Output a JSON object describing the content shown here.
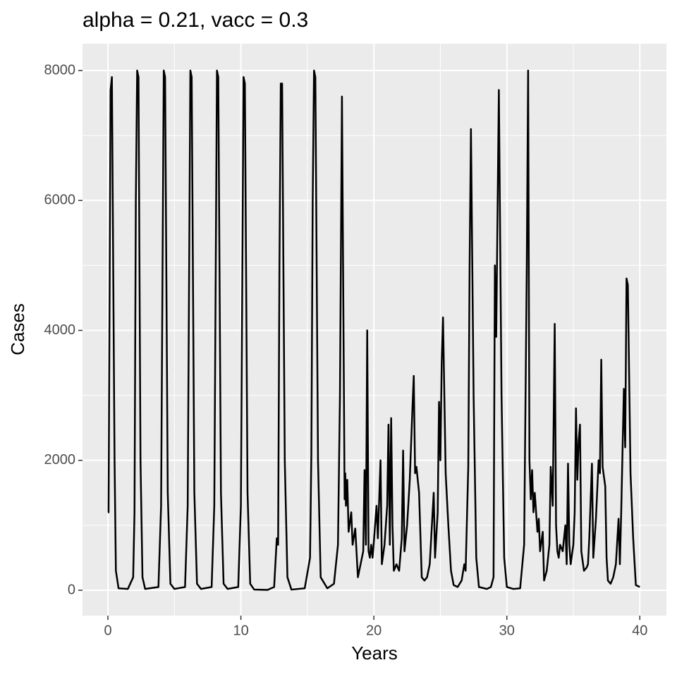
{
  "chart_data": {
    "type": "line",
    "title": "alpha = 0.21, vacc = 0.3",
    "x_label": "Years",
    "y_label": "Cases",
    "color": "#000000",
    "grid": true,
    "xlim": [
      -1.91,
      42.0
    ],
    "ylim": [
      -391,
      8413
    ],
    "xticks": [
      0,
      10,
      20,
      30,
      40
    ],
    "yticks": [
      0,
      2000,
      4000,
      6000,
      8000
    ],
    "x": [
      0,
      0.05,
      0.2,
      0.3,
      0.5,
      0.6,
      0.8,
      1.5,
      1.9,
      2.0,
      2.1,
      2.2,
      2.3,
      2.45,
      2.6,
      2.8,
      3.8,
      4.0,
      4.2,
      4.3,
      4.5,
      4.7,
      5.0,
      5.8,
      6.0,
      6.2,
      6.3,
      6.5,
      6.7,
      7.0,
      7.8,
      8.0,
      8.2,
      8.3,
      8.5,
      8.7,
      9.0,
      9.8,
      10.0,
      10.2,
      10.3,
      10.5,
      10.7,
      11.0,
      12.0,
      12.5,
      12.7,
      12.8,
      12.9,
      13.0,
      13.1,
      13.3,
      13.5,
      13.8,
      14.8,
      15.2,
      15.3,
      15.4,
      15.5,
      15.6,
      15.8,
      16.0,
      16.5,
      17.0,
      17.3,
      17.45,
      17.6,
      17.75,
      17.8,
      17.85,
      17.9,
      18.0,
      18.1,
      18.3,
      18.4,
      18.6,
      18.8,
      19.0,
      19.2,
      19.3,
      19.4,
      19.5,
      19.6,
      19.7,
      19.8,
      19.9,
      20.0,
      20.2,
      20.3,
      20.5,
      20.6,
      20.8,
      21.0,
      21.1,
      21.2,
      21.3,
      21.4,
      21.5,
      21.7,
      21.9,
      22.1,
      22.2,
      22.3,
      22.5,
      22.7,
      22.9,
      23.0,
      23.1,
      23.2,
      23.4,
      23.6,
      23.8,
      24.0,
      24.2,
      24.5,
      24.6,
      24.8,
      24.9,
      25.0,
      25.1,
      25.2,
      25.4,
      25.6,
      25.8,
      26.0,
      26.3,
      26.6,
      26.8,
      26.9,
      27.1,
      27.2,
      27.3,
      27.5,
      27.7,
      27.9,
      28.5,
      28.8,
      29.0,
      29.1,
      29.2,
      29.4,
      29.6,
      29.8,
      30.0,
      30.5,
      31.0,
      31.3,
      31.5,
      31.6,
      31.7,
      31.8,
      31.9,
      32.0,
      32.1,
      32.3,
      32.4,
      32.5,
      32.7,
      32.8,
      33.0,
      33.2,
      33.3,
      33.45,
      33.6,
      33.7,
      33.8,
      33.9,
      34.0,
      34.2,
      34.4,
      34.5,
      34.6,
      34.7,
      34.8,
      35.0,
      35.1,
      35.2,
      35.3,
      35.4,
      35.5,
      35.6,
      35.8,
      36.0,
      36.1,
      36.2,
      36.4,
      36.5,
      36.7,
      36.9,
      37.0,
      37.1,
      37.2,
      37.4,
      37.5,
      37.6,
      37.8,
      38.0,
      38.2,
      38.4,
      38.5,
      38.6,
      38.8,
      38.9,
      39.0,
      39.1,
      39.3,
      39.5,
      39.7,
      40.0
    ],
    "values": [
      1200,
      1200,
      7700,
      7900,
      2000,
      300,
      30,
      20,
      200,
      1200,
      6000,
      8000,
      7900,
      2000,
      200,
      20,
      50,
      1300,
      8000,
      7900,
      1500,
      100,
      20,
      50,
      1300,
      8000,
      7900,
      1500,
      100,
      20,
      50,
      1300,
      8000,
      7900,
      1500,
      100,
      20,
      50,
      1300,
      7900,
      7800,
      1500,
      100,
      10,
      5,
      50,
      800,
      700,
      5000,
      7800,
      7800,
      2000,
      200,
      10,
      30,
      500,
      2100,
      6000,
      8000,
      7900,
      2000,
      200,
      30,
      100,
      700,
      3000,
      7600,
      3000,
      1400,
      1800,
      1300,
      1700,
      900,
      1200,
      700,
      950,
      200,
      400,
      600,
      1850,
      700,
      4000,
      600,
      500,
      700,
      500,
      750,
      1300,
      800,
      2000,
      400,
      700,
      1300,
      2550,
      700,
      2650,
      1000,
      300,
      400,
      300,
      800,
      2150,
      600,
      1000,
      1700,
      2800,
      3300,
      1800,
      1900,
      1500,
      200,
      150,
      200,
      400,
      1500,
      500,
      1200,
      2900,
      2000,
      3500,
      4200,
      1800,
      1000,
      300,
      80,
      50,
      150,
      400,
      300,
      1900,
      5000,
      7100,
      3000,
      500,
      50,
      20,
      50,
      200,
      5000,
      3900,
      7700,
      3000,
      500,
      50,
      20,
      30,
      700,
      5000,
      8000,
      2000,
      1400,
      1850,
      1200,
      1500,
      900,
      1100,
      600,
      900,
      150,
      300,
      700,
      1900,
      1300,
      4100,
      1000,
      600,
      500,
      700,
      600,
      1000,
      400,
      1950,
      700,
      400,
      700,
      1200,
      2800,
      1700,
      2300,
      2550,
      600,
      300,
      350,
      400,
      800,
      1950,
      500,
      1100,
      2000,
      1800,
      3550,
      1900,
      1600,
      500,
      150,
      100,
      200,
      400,
      1100,
      400,
      1200,
      3100,
      2200,
      4800,
      4700,
      1800,
      800,
      80,
      50
    ]
  }
}
